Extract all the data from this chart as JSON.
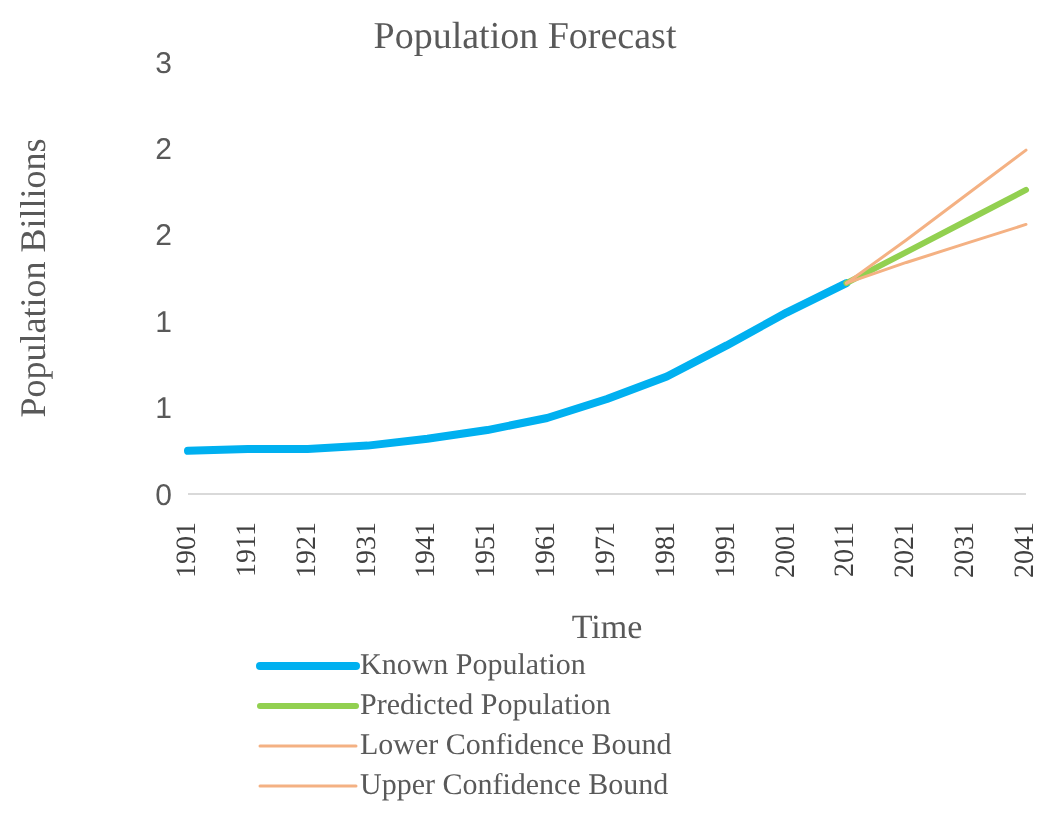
{
  "chart_data": {
    "type": "line",
    "title": "Population Forecast",
    "xlabel": "Time",
    "ylabel": "Population  Billions",
    "categories": [
      "1901",
      "1911",
      "1921",
      "1931",
      "1941",
      "1951",
      "1961",
      "1971",
      "1981",
      "1991",
      "2001",
      "2011",
      "2021",
      "2031",
      "2041"
    ],
    "series": [
      {
        "name": "Known Population",
        "color": "#00b0f0",
        "values": [
          0.25,
          0.26,
          0.26,
          0.28,
          0.32,
          0.37,
          0.44,
          0.55,
          0.68,
          0.86,
          1.05,
          1.22,
          null,
          null,
          null
        ]
      },
      {
        "name": "Predicted Population",
        "color": "#92d050",
        "values": [
          null,
          null,
          null,
          null,
          null,
          null,
          null,
          null,
          null,
          null,
          null,
          1.22,
          1.4,
          1.58,
          1.76
        ]
      },
      {
        "name": "Lower Confidence Bound",
        "color": "#f4b183",
        "values": [
          null,
          null,
          null,
          null,
          null,
          null,
          null,
          null,
          null,
          null,
          null,
          1.22,
          1.34,
          1.45,
          1.56
        ]
      },
      {
        "name": "Upper Confidence Bound",
        "color": "#f4b183",
        "values": [
          null,
          null,
          null,
          null,
          null,
          null,
          null,
          null,
          null,
          null,
          null,
          1.22,
          1.47,
          1.73,
          1.99
        ]
      }
    ],
    "ylim": [
      0,
      2.5
    ],
    "yticks": [
      {
        "value": 0,
        "label": "0"
      },
      {
        "value": 0.5,
        "label": "1"
      },
      {
        "value": 1,
        "label": "1"
      },
      {
        "value": 1.5,
        "label": "2"
      },
      {
        "value": 2,
        "label": "2"
      },
      {
        "value": 2.5,
        "label": "3"
      }
    ],
    "grid": false,
    "legend": "bottom",
    "marker": "none",
    "line_style": "solid"
  }
}
